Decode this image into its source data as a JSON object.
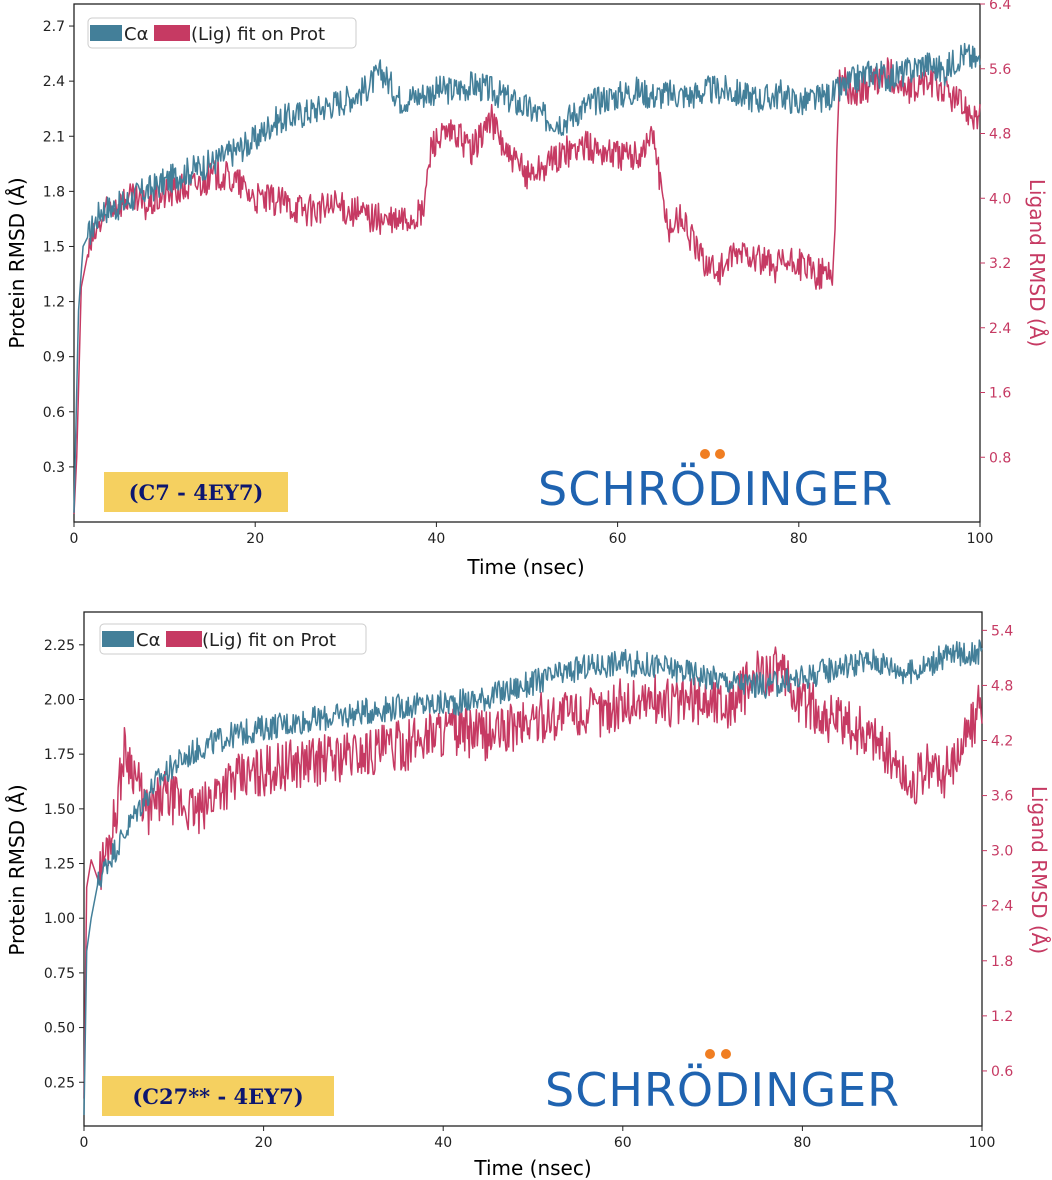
{
  "colors": {
    "protein": "#437f99",
    "ligand": "#c63a63",
    "tag_bg": "#f5d060",
    "tag_text": "#0c1670",
    "logo": "#1f63b0",
    "logo_dots": "#f07e22"
  },
  "legend": {
    "protein_label": "Cα",
    "ligand_label": "(Lig) fit on Prot"
  },
  "logo_text": "SCHRÖDINGER",
  "chart_data": [
    {
      "type": "line",
      "tag": "(C7 - 4EY7)",
      "xlabel": "Time (nsec)",
      "ylabel": "Protein RMSD (Å)",
      "ylabel2": "Ligand RMSD (Å)",
      "xlim": [
        0,
        100
      ],
      "ylim": [
        0.0,
        2.82
      ],
      "ylim2": [
        0.0,
        6.4
      ],
      "x_ticks": [
        0,
        20,
        40,
        60,
        80,
        100
      ],
      "x_tick_labels": [
        "0",
        "20",
        "40",
        "60",
        "80",
        "100"
      ],
      "y_ticks": [
        0.3,
        0.6,
        0.9,
        1.2,
        1.5,
        1.8,
        2.1,
        2.4,
        2.7
      ],
      "y_tick_labels": [
        "0.3",
        "0.6",
        "0.9",
        "1.2",
        "1.5",
        "1.8",
        "2.1",
        "2.4",
        "2.7"
      ],
      "y2_ticks": [
        0.8,
        1.6,
        2.4,
        3.2,
        4.0,
        4.8,
        5.6,
        6.4
      ],
      "y2_tick_labels": [
        "0.8",
        "1.6",
        "2.4",
        "3.2",
        "4.0",
        "4.8",
        "5.6",
        "6.4"
      ],
      "series": [
        {
          "role": "protein",
          "x": [
            0,
            0.5,
            1,
            2,
            3,
            5,
            7,
            10,
            12,
            15,
            17,
            20,
            22,
            25,
            27,
            30,
            32,
            34,
            36,
            38,
            40,
            42,
            44,
            46,
            48,
            50,
            52,
            54,
            56,
            58,
            60,
            62,
            64,
            66,
            68,
            70,
            72,
            74,
            76,
            78,
            80,
            82,
            84,
            86,
            88,
            90,
            92,
            94,
            96,
            98,
            100
          ],
          "y": [
            0.05,
            1.15,
            1.5,
            1.6,
            1.7,
            1.72,
            1.78,
            1.85,
            1.9,
            1.95,
            2.0,
            2.08,
            2.18,
            2.22,
            2.25,
            2.3,
            2.35,
            2.45,
            2.3,
            2.32,
            2.35,
            2.35,
            2.38,
            2.35,
            2.3,
            2.25,
            2.2,
            2.18,
            2.25,
            2.3,
            2.32,
            2.35,
            2.32,
            2.33,
            2.32,
            2.35,
            2.35,
            2.32,
            2.3,
            2.33,
            2.28,
            2.3,
            2.33,
            2.4,
            2.45,
            2.42,
            2.45,
            2.5,
            2.45,
            2.55,
            2.5
          ],
          "noise": 0.08
        },
        {
          "role": "ligand",
          "x": [
            0,
            0.3,
            0.8,
            1.5,
            2.5,
            4,
            6,
            8,
            10,
            13,
            16,
            18,
            20,
            23,
            26,
            29,
            32,
            35,
            37,
            38.5,
            39.5,
            42,
            44,
            46,
            48,
            50,
            52,
            54,
            56,
            58,
            60,
            62,
            64,
            64.8,
            65.5,
            67,
            69,
            71,
            74,
            77,
            80,
            82,
            83.8,
            84.5,
            86,
            88,
            90,
            92,
            94,
            96,
            98,
            100
          ],
          "y": [
            0.1,
            0.8,
            2.9,
            3.3,
            3.6,
            3.9,
            4.0,
            3.9,
            4.05,
            4.15,
            4.3,
            4.2,
            4.0,
            3.95,
            3.85,
            3.9,
            3.8,
            3.7,
            3.75,
            3.8,
            4.7,
            4.8,
            4.6,
            5.0,
            4.5,
            4.3,
            4.4,
            4.55,
            4.65,
            4.6,
            4.55,
            4.5,
            4.8,
            4.1,
            3.6,
            3.8,
            3.3,
            3.1,
            3.35,
            3.15,
            3.2,
            3.05,
            3.1,
            5.5,
            5.3,
            5.4,
            5.55,
            5.3,
            5.45,
            5.35,
            5.15,
            5.0
          ],
          "noise": 0.2
        }
      ]
    },
    {
      "type": "line",
      "tag": "(C27** - 4EY7)",
      "xlabel": "Time (nsec)",
      "ylabel": "Protein RMSD (Å)",
      "ylabel2": "Ligand RMSD (Å)",
      "xlim": [
        0,
        100
      ],
      "ylim": [
        0.05,
        2.4
      ],
      "ylim2": [
        0.0,
        5.6
      ],
      "x_ticks": [
        0,
        20,
        40,
        60,
        80,
        100
      ],
      "x_tick_labels": [
        "0",
        "20",
        "40",
        "60",
        "80",
        "100"
      ],
      "y_ticks": [
        0.25,
        0.5,
        0.75,
        1.0,
        1.25,
        1.5,
        1.75,
        2.0,
        2.25
      ],
      "y_tick_labels": [
        "0.25",
        "0.50",
        "0.75",
        "1.00",
        "1.25",
        "1.50",
        "1.75",
        "2.00",
        "2.25"
      ],
      "y2_ticks": [
        0.6,
        1.2,
        1.8,
        2.4,
        3.0,
        3.6,
        4.2,
        4.8,
        5.4
      ],
      "y2_tick_labels": [
        "0.6",
        "1.2",
        "1.8",
        "2.4",
        "3.0",
        "3.6",
        "4.2",
        "4.8",
        "5.4"
      ],
      "series": [
        {
          "role": "protein",
          "x": [
            0,
            0.3,
            0.8,
            1.5,
            2.5,
            4,
            6,
            8,
            10,
            13,
            16,
            20,
            24,
            28,
            32,
            36,
            40,
            44,
            48,
            52,
            56,
            60,
            64,
            68,
            72,
            76,
            80,
            84,
            88,
            92,
            96,
            100
          ],
          "y": [
            0.1,
            0.85,
            1.0,
            1.15,
            1.25,
            1.35,
            1.5,
            1.62,
            1.7,
            1.78,
            1.83,
            1.87,
            1.9,
            1.92,
            1.95,
            1.97,
            1.98,
            2.0,
            2.05,
            2.1,
            2.15,
            2.17,
            2.15,
            2.12,
            2.08,
            2.06,
            2.1,
            2.15,
            2.18,
            2.12,
            2.2,
            2.22
          ],
          "noise": 0.06
        },
        {
          "role": "ligand",
          "x": [
            0,
            0.3,
            0.8,
            1.5,
            2.5,
            3.5,
            4.5,
            5.5,
            7,
            9,
            11,
            13,
            15,
            18,
            21,
            24,
            27,
            30,
            33,
            36,
            39,
            42,
            45,
            48,
            51,
            54,
            57,
            60,
            63,
            66,
            69,
            72,
            75,
            77,
            79,
            82,
            85,
            88,
            90,
            92,
            94,
            96,
            98,
            100
          ],
          "y": [
            0.3,
            2.6,
            2.9,
            2.7,
            3.0,
            3.4,
            4.1,
            3.9,
            3.4,
            3.6,
            3.5,
            3.4,
            3.7,
            3.8,
            3.9,
            3.95,
            4.0,
            4.05,
            4.1,
            4.15,
            4.3,
            4.3,
            4.25,
            4.35,
            4.45,
            4.5,
            4.5,
            4.6,
            4.65,
            4.6,
            4.65,
            4.6,
            4.9,
            5.0,
            4.7,
            4.5,
            4.35,
            4.25,
            4.0,
            3.7,
            3.9,
            3.85,
            4.2,
            4.6
          ],
          "noise": 0.28
        }
      ]
    }
  ]
}
